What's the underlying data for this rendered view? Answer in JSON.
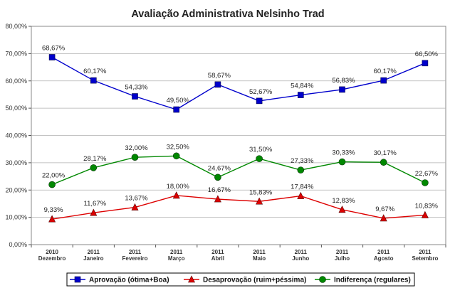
{
  "chart_data": {
    "type": "line",
    "title": "Avaliação Administrativa  Nelsinho Trad",
    "categories": [
      [
        "2010",
        "Dezembro"
      ],
      [
        "2011",
        "Janeiro"
      ],
      [
        "2011",
        "Fevereiro"
      ],
      [
        "2011",
        "Março"
      ],
      [
        "2011",
        "Abril"
      ],
      [
        "2011",
        "Maio"
      ],
      [
        "2011",
        "Junho"
      ],
      [
        "2011",
        "Julho"
      ],
      [
        "2011",
        "Agosto"
      ],
      [
        "2011",
        "Setembro"
      ]
    ],
    "ylim": [
      0,
      80
    ],
    "yticks": [
      0,
      10,
      20,
      30,
      40,
      50,
      60,
      70,
      80
    ],
    "ytick_labels": [
      "0,00%",
      "10,00%",
      "20,00%",
      "30,00%",
      "40,00%",
      "50,00%",
      "60,00%",
      "70,00%",
      "80,00%"
    ],
    "grid": true,
    "legend_position": "bottom",
    "series": [
      {
        "name": "Aprovação (ótima+Boa)",
        "color": "#0000cc",
        "marker": "square",
        "values": [
          68.67,
          60.17,
          54.33,
          49.5,
          58.67,
          52.67,
          54.84,
          56.83,
          60.17,
          66.5
        ],
        "labels": [
          "68,67%",
          "60,17%",
          "54,33%",
          "49,50%",
          "58,67%",
          "52,67%",
          "54,84%",
          "56,83%",
          "60,17%",
          "66,50%"
        ]
      },
      {
        "name": "Desaprovação (ruim+péssima)",
        "color": "#dd0000",
        "marker": "triangle",
        "values": [
          9.33,
          11.67,
          13.67,
          18.0,
          16.67,
          15.83,
          17.84,
          12.83,
          9.67,
          10.83
        ],
        "labels": [
          "9,33%",
          "11,67%",
          "13,67%",
          "18,00%",
          "16,67%",
          "15,83%",
          "17,84%",
          "12,83%",
          "9,67%",
          "10,83%"
        ]
      },
      {
        "name": "Indiferença (regulares)",
        "color": "#008800",
        "marker": "circle",
        "values": [
          22.0,
          28.17,
          32.0,
          32.5,
          24.67,
          31.5,
          27.33,
          30.33,
          30.17,
          22.67
        ],
        "labels": [
          "22,00%",
          "28,17%",
          "32,00%",
          "32,50%",
          "24,67%",
          "31,50%",
          "27,33%",
          "30,33%",
          "30,17%",
          "22,67%"
        ]
      }
    ]
  }
}
